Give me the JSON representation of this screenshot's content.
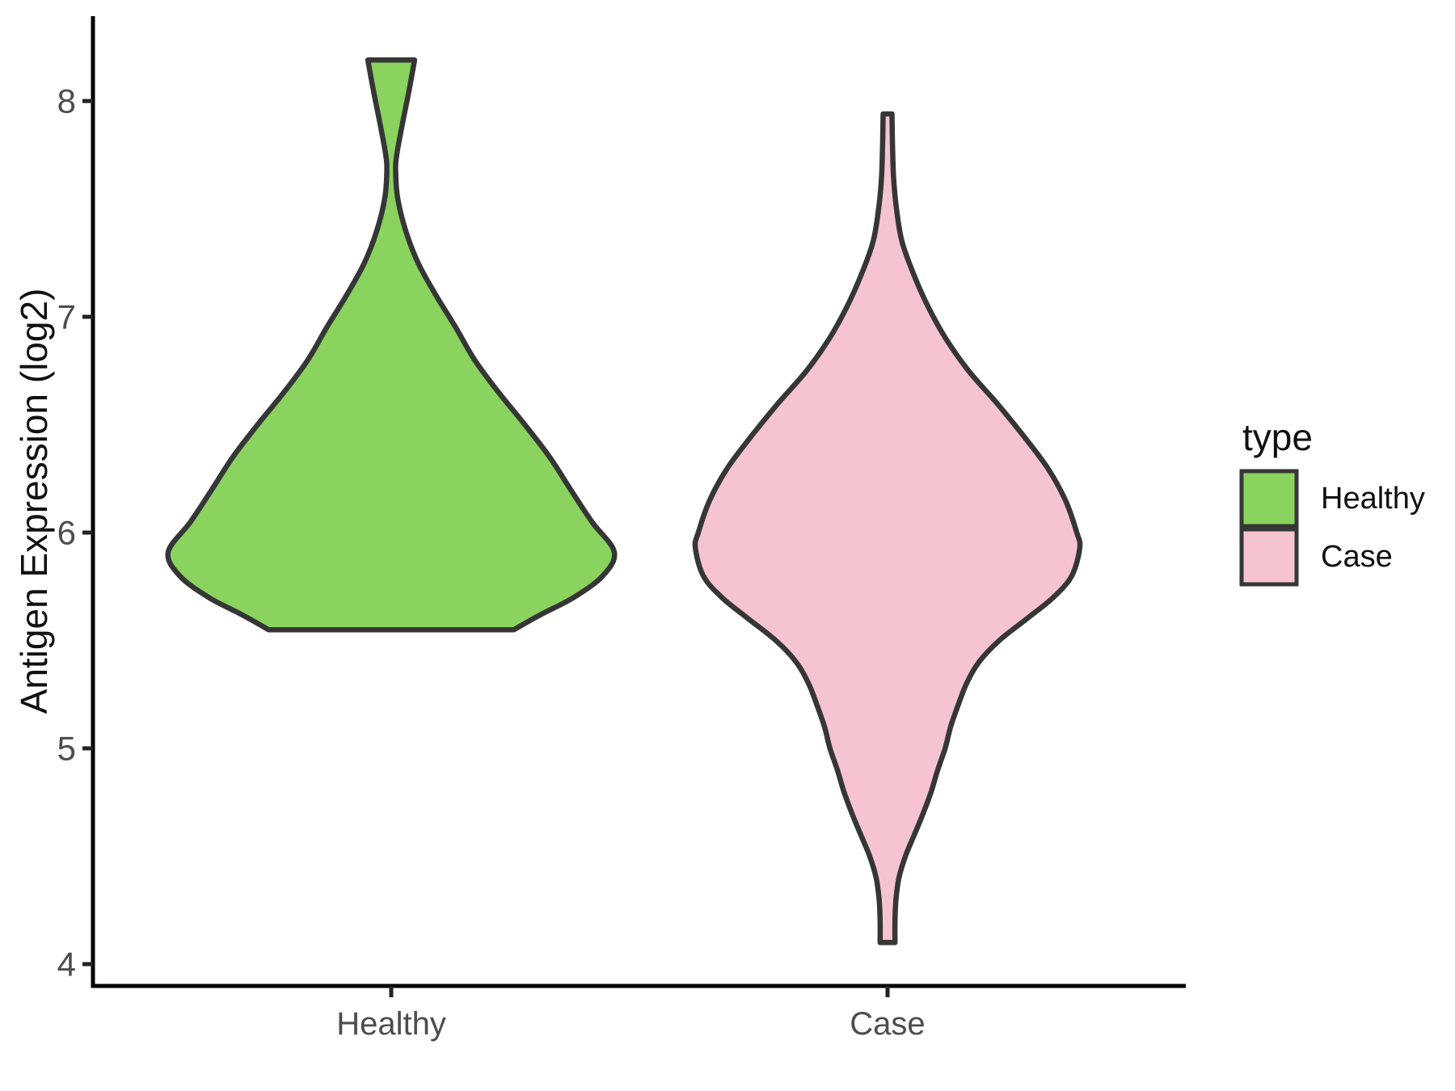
{
  "chart_data": {
    "type": "violin",
    "title": "",
    "xlabel": "",
    "ylabel": "Antigen Expression (log2)",
    "categories": [
      "Healthy",
      "Case"
    ],
    "y_ticks": [
      8,
      7,
      6,
      5,
      4
    ],
    "y_axis_range": [
      3.9,
      8.4
    ],
    "grid": "off",
    "legend_position": "right",
    "legend": {
      "title": "type",
      "entries": [
        {
          "label": "Healthy",
          "fill": "#8BD35F"
        },
        {
          "label": "Case",
          "fill": "#F6C4D0"
        }
      ]
    },
    "series": [
      {
        "name": "Healthy",
        "fill": "#8BD35F",
        "y_min": 5.55,
        "y_max": 8.19,
        "peak_value": 5.91,
        "profile": [
          [
            8.19,
            0.047
          ],
          [
            8.05,
            0.036
          ],
          [
            7.9,
            0.023
          ],
          [
            7.75,
            0.011
          ],
          [
            7.67,
            0.009
          ],
          [
            7.55,
            0.013
          ],
          [
            7.4,
            0.029
          ],
          [
            7.25,
            0.054
          ],
          [
            7.1,
            0.09
          ],
          [
            6.95,
            0.13
          ],
          [
            6.8,
            0.168
          ],
          [
            6.65,
            0.216
          ],
          [
            6.5,
            0.269
          ],
          [
            6.35,
            0.319
          ],
          [
            6.2,
            0.361
          ],
          [
            6.05,
            0.404
          ],
          [
            5.91,
            0.449
          ],
          [
            5.8,
            0.426
          ],
          [
            5.7,
            0.368
          ],
          [
            5.62,
            0.301
          ],
          [
            5.55,
            0.247
          ]
        ]
      },
      {
        "name": "Case",
        "fill": "#F6C4D0",
        "y_min": 4.1,
        "y_max": 7.94,
        "peak_value": 5.93,
        "profile": [
          [
            7.94,
            0.009
          ],
          [
            7.8,
            0.01
          ],
          [
            7.65,
            0.012
          ],
          [
            7.5,
            0.018
          ],
          [
            7.35,
            0.029
          ],
          [
            7.2,
            0.052
          ],
          [
            7.05,
            0.081
          ],
          [
            6.9,
            0.117
          ],
          [
            6.75,
            0.163
          ],
          [
            6.6,
            0.22
          ],
          [
            6.45,
            0.273
          ],
          [
            6.3,
            0.322
          ],
          [
            6.15,
            0.358
          ],
          [
            6.0,
            0.381
          ],
          [
            5.93,
            0.387
          ],
          [
            5.8,
            0.371
          ],
          [
            5.7,
            0.334
          ],
          [
            5.6,
            0.28
          ],
          [
            5.5,
            0.225
          ],
          [
            5.4,
            0.184
          ],
          [
            5.3,
            0.159
          ],
          [
            5.2,
            0.142
          ],
          [
            5.1,
            0.127
          ],
          [
            5.0,
            0.116
          ],
          [
            4.9,
            0.101
          ],
          [
            4.8,
            0.088
          ],
          [
            4.7,
            0.072
          ],
          [
            4.6,
            0.054
          ],
          [
            4.5,
            0.036
          ],
          [
            4.4,
            0.023
          ],
          [
            4.3,
            0.017
          ],
          [
            4.2,
            0.015
          ],
          [
            4.1,
            0.015
          ]
        ]
      }
    ],
    "colors": {
      "outline": "#363636",
      "axis_line": "#000000",
      "tick_mark": "#222222",
      "tick_text": "#4d4d4d",
      "title_text": "#111111"
    }
  }
}
